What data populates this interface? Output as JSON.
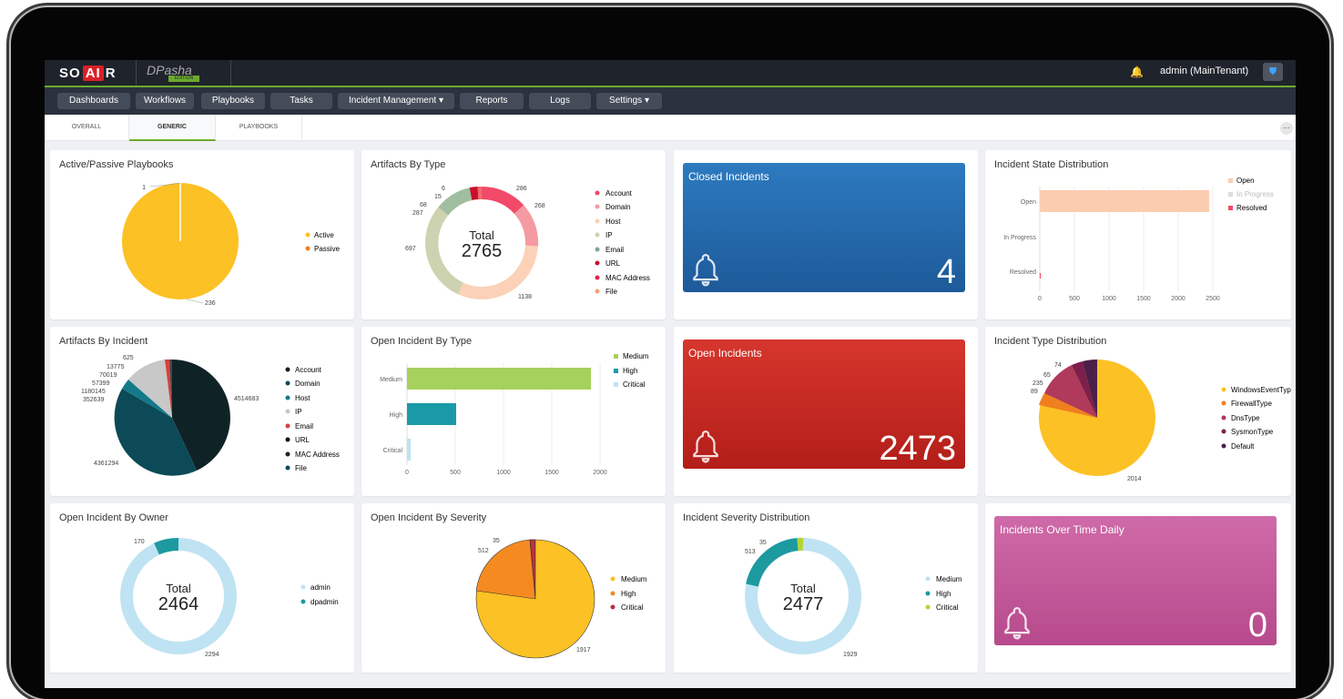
{
  "brand": {
    "logo_left": "SO",
    "logo_mid": "AI",
    "logo_right": "R",
    "product": "DPasha",
    "product_sub": "EDITION"
  },
  "header": {
    "user": "admin (MainTenant)"
  },
  "nav": [
    "Dashboards",
    "Workflows",
    "Playbooks",
    "Tasks",
    "Incident Management ▾",
    "Reports",
    "Logs",
    "Settings ▾"
  ],
  "tabs": [
    "OVERALL",
    "GENERIC",
    "PLAYBOOKS"
  ],
  "active_tab": "GENERIC",
  "widgets": {
    "active_passive": {
      "title": "Active/Passive Playbooks",
      "labels": [
        "236",
        "1"
      ],
      "legend": [
        "Active",
        "Passive"
      ],
      "colors": [
        "#fcc125",
        "#f07f20"
      ]
    },
    "artifacts_by_type": {
      "title": "Artifacts By Type",
      "total_label": "Total",
      "total_value": "2765",
      "labels": [
        "286",
        "268",
        "1138",
        "697",
        "287",
        "68",
        "15",
        "6"
      ],
      "legend": [
        "Account",
        "Domain",
        "Host",
        "IP",
        "Email",
        "URL",
        "MAC Address",
        "File"
      ]
    },
    "closed_incidents": {
      "title": "Closed Incidents",
      "value": "4",
      "color": "#2a72b5"
    },
    "incident_state": {
      "title": "Incident State Distribution",
      "categories": [
        "Open",
        "In Progress",
        "Resolved"
      ],
      "ticks": [
        "0",
        "500",
        "1000",
        "1500",
        "2000",
        "2500"
      ],
      "legend": [
        "Open",
        "In Progress",
        "Resolved"
      ]
    },
    "artifacts_by_incident": {
      "title": "Artifacts By Incident",
      "labels": [
        "4514683",
        "4361294",
        "625",
        "13775",
        "70019",
        "57399",
        "1180145",
        "352639"
      ],
      "legend": [
        "Account",
        "Domain",
        "Host",
        "IP",
        "Email",
        "URL",
        "MAC Address",
        "File"
      ]
    },
    "open_by_type": {
      "title": "Open Incident By Type",
      "categories": [
        "Medium",
        "High",
        "Critical"
      ],
      "ticks": [
        "0",
        "500",
        "1000",
        "1500",
        "2000"
      ],
      "legend": [
        "Medium",
        "High",
        "Critical"
      ]
    },
    "open_incidents": {
      "title": "Open Incidents",
      "value": "2473",
      "color": "#c62a22"
    },
    "incident_type": {
      "title": "Incident Type Distribution",
      "labels": [
        "2014",
        "89",
        "235",
        "65",
        "74"
      ],
      "legend": [
        "WindowsEventType",
        "FirewallType",
        "DnsType",
        "SysmonType",
        "Default"
      ]
    },
    "open_by_owner": {
      "title": "Open Incident By Owner",
      "total_label": "Total",
      "total_value": "2464",
      "labels": [
        "2294",
        "170"
      ],
      "legend": [
        "admin",
        "dpadmin"
      ]
    },
    "open_by_severity": {
      "title": "Open Incident By Severity",
      "labels": [
        "1917",
        "512",
        "35"
      ],
      "legend": [
        "Medium",
        "High",
        "Critical"
      ]
    },
    "severity_distribution": {
      "title": "Incident Severity Distribution",
      "total_label": "Total",
      "total_value": "2477",
      "labels": [
        "1929",
        "513",
        "35"
      ],
      "legend": [
        "Medium",
        "High",
        "Critical"
      ]
    },
    "over_time": {
      "title": "Incidents Over Time Daily",
      "value": "0",
      "color": "#c6589c"
    }
  },
  "chart_data": [
    {
      "type": "pie",
      "title": "Active/Passive Playbooks",
      "categories": [
        "Active",
        "Passive"
      ],
      "values": [
        236,
        1
      ]
    },
    {
      "type": "pie",
      "title": "Artifacts By Type",
      "categories": [
        "Account",
        "Domain",
        "Host",
        "IP",
        "Email",
        "URL",
        "MAC Address",
        "File"
      ],
      "values": [
        286,
        268,
        1138,
        697,
        287,
        68,
        15,
        6
      ]
    },
    {
      "type": "bar",
      "title": "Incident State Distribution",
      "categories": [
        "Open",
        "In Progress",
        "Resolved"
      ],
      "values": [
        2460,
        0,
        4
      ],
      "xlim": [
        0,
        2500
      ]
    },
    {
      "type": "pie",
      "title": "Artifacts By Incident",
      "categories": [
        "Account",
        "Domain",
        "Host",
        "IP",
        "Email",
        "URL",
        "MAC Address",
        "File"
      ],
      "values": [
        4514683,
        4361294,
        352639,
        1180145,
        57399,
        70019,
        13775,
        625
      ]
    },
    {
      "type": "bar",
      "title": "Open Incident By Type",
      "categories": [
        "Medium",
        "High",
        "Critical"
      ],
      "values": [
        1930,
        510,
        35
      ],
      "xlim": [
        0,
        2000
      ]
    },
    {
      "type": "pie",
      "title": "Incident Type Distribution",
      "categories": [
        "WindowsEventType",
        "FirewallType",
        "DnsType",
        "SysmonType",
        "Default"
      ],
      "values": [
        2014,
        89,
        235,
        65,
        74
      ]
    },
    {
      "type": "pie",
      "title": "Open Incident By Owner",
      "categories": [
        "admin",
        "dpadmin"
      ],
      "values": [
        2294,
        170
      ]
    },
    {
      "type": "pie",
      "title": "Open Incident By Severity",
      "categories": [
        "Medium",
        "High",
        "Critical"
      ],
      "values": [
        1917,
        512,
        35
      ]
    },
    {
      "type": "pie",
      "title": "Incident Severity Distribution",
      "categories": [
        "Medium",
        "High",
        "Critical"
      ],
      "values": [
        1929,
        513,
        35
      ]
    }
  ]
}
